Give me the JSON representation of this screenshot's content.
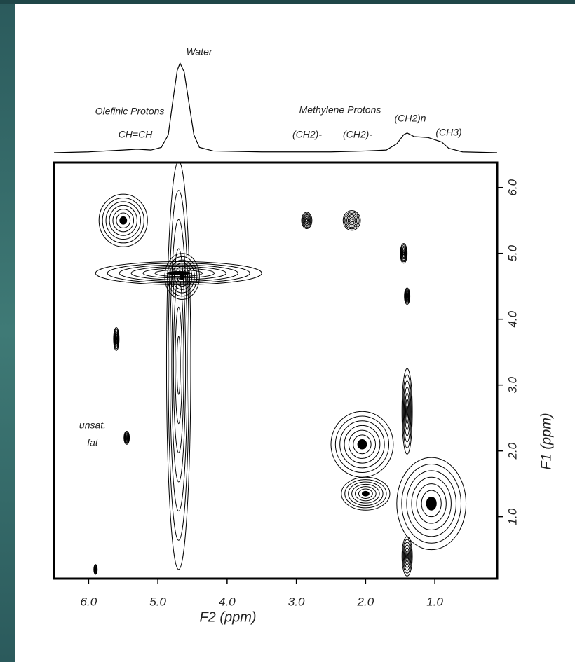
{
  "chart_data": {
    "type": "contour",
    "xlabel": "F2 (ppm)",
    "ylabel": "F1 (ppm)",
    "xlim": [
      6.5,
      0.1
    ],
    "ylim": [
      0.06,
      6.38
    ],
    "xticks": [
      {
        "value": 6,
        "label": "6.0"
      },
      {
        "value": 5,
        "label": "5.0"
      },
      {
        "value": 4,
        "label": "4.0"
      },
      {
        "value": 3,
        "label": "3.0"
      },
      {
        "value": 2,
        "label": "2.0"
      },
      {
        "value": 1,
        "label": "1.0"
      }
    ],
    "yticks": [
      {
        "value": 1,
        "label": "1.0"
      },
      {
        "value": 2,
        "label": "2.0"
      },
      {
        "value": 3,
        "label": "3.0"
      },
      {
        "value": 4,
        "label": "4.0"
      },
      {
        "value": 5,
        "label": "5.0"
      },
      {
        "value": 6,
        "label": "6.0"
      }
    ],
    "annotations": [
      "Water",
      "Olefinic Protons",
      "CH=CH",
      "Methylene Protons",
      "(CH2)-",
      "(CH2)-",
      "(CH2)n",
      "(CH3)",
      "unsat.",
      "fat"
    ],
    "projection": {
      "x": [
        6.5,
        6.0,
        5.5,
        5.3,
        5.1,
        4.95,
        4.85,
        4.78,
        4.72,
        4.68,
        4.62,
        4.55,
        4.48,
        4.4,
        4.2,
        3.5,
        3.0,
        2.5,
        2.0,
        1.7,
        1.55,
        1.45,
        1.4,
        1.3,
        1.1,
        0.9,
        0.8,
        0.6,
        0.1
      ],
      "values": [
        0,
        1,
        3,
        4,
        3,
        6,
        20,
        60,
        92,
        100,
        90,
        55,
        20,
        6,
        2,
        1,
        1,
        1,
        2,
        3,
        10,
        20,
        22,
        18,
        17,
        12,
        5,
        1,
        0
      ]
    },
    "peaks": {
      "x": [
        5.5,
        4.7,
        4.65,
        4.7,
        5.6,
        5.45,
        2.85,
        2.2,
        1.45,
        1.4,
        1.4,
        2.05,
        2.0,
        1.05,
        1.4,
        5.9
      ],
      "y": [
        5.5,
        4.7,
        4.65,
        3.3,
        3.7,
        2.2,
        5.5,
        5.5,
        5.0,
        4.35,
        2.6,
        2.1,
        1.35,
        1.2,
        0.4,
        0.2
      ],
      "width": [
        0.7,
        2.4,
        0.5,
        0.35,
        0.08,
        0.08,
        0.15,
        0.25,
        0.1,
        0.08,
        0.15,
        0.9,
        0.7,
        1.0,
        0.15,
        0.05
      ],
      "height": [
        0.8,
        0.35,
        0.7,
        6.2,
        0.35,
        0.2,
        0.25,
        0.3,
        0.3,
        0.25,
        1.3,
        1.0,
        0.5,
        1.4,
        0.6,
        0.15
      ]
    },
    "color": "#000000"
  }
}
